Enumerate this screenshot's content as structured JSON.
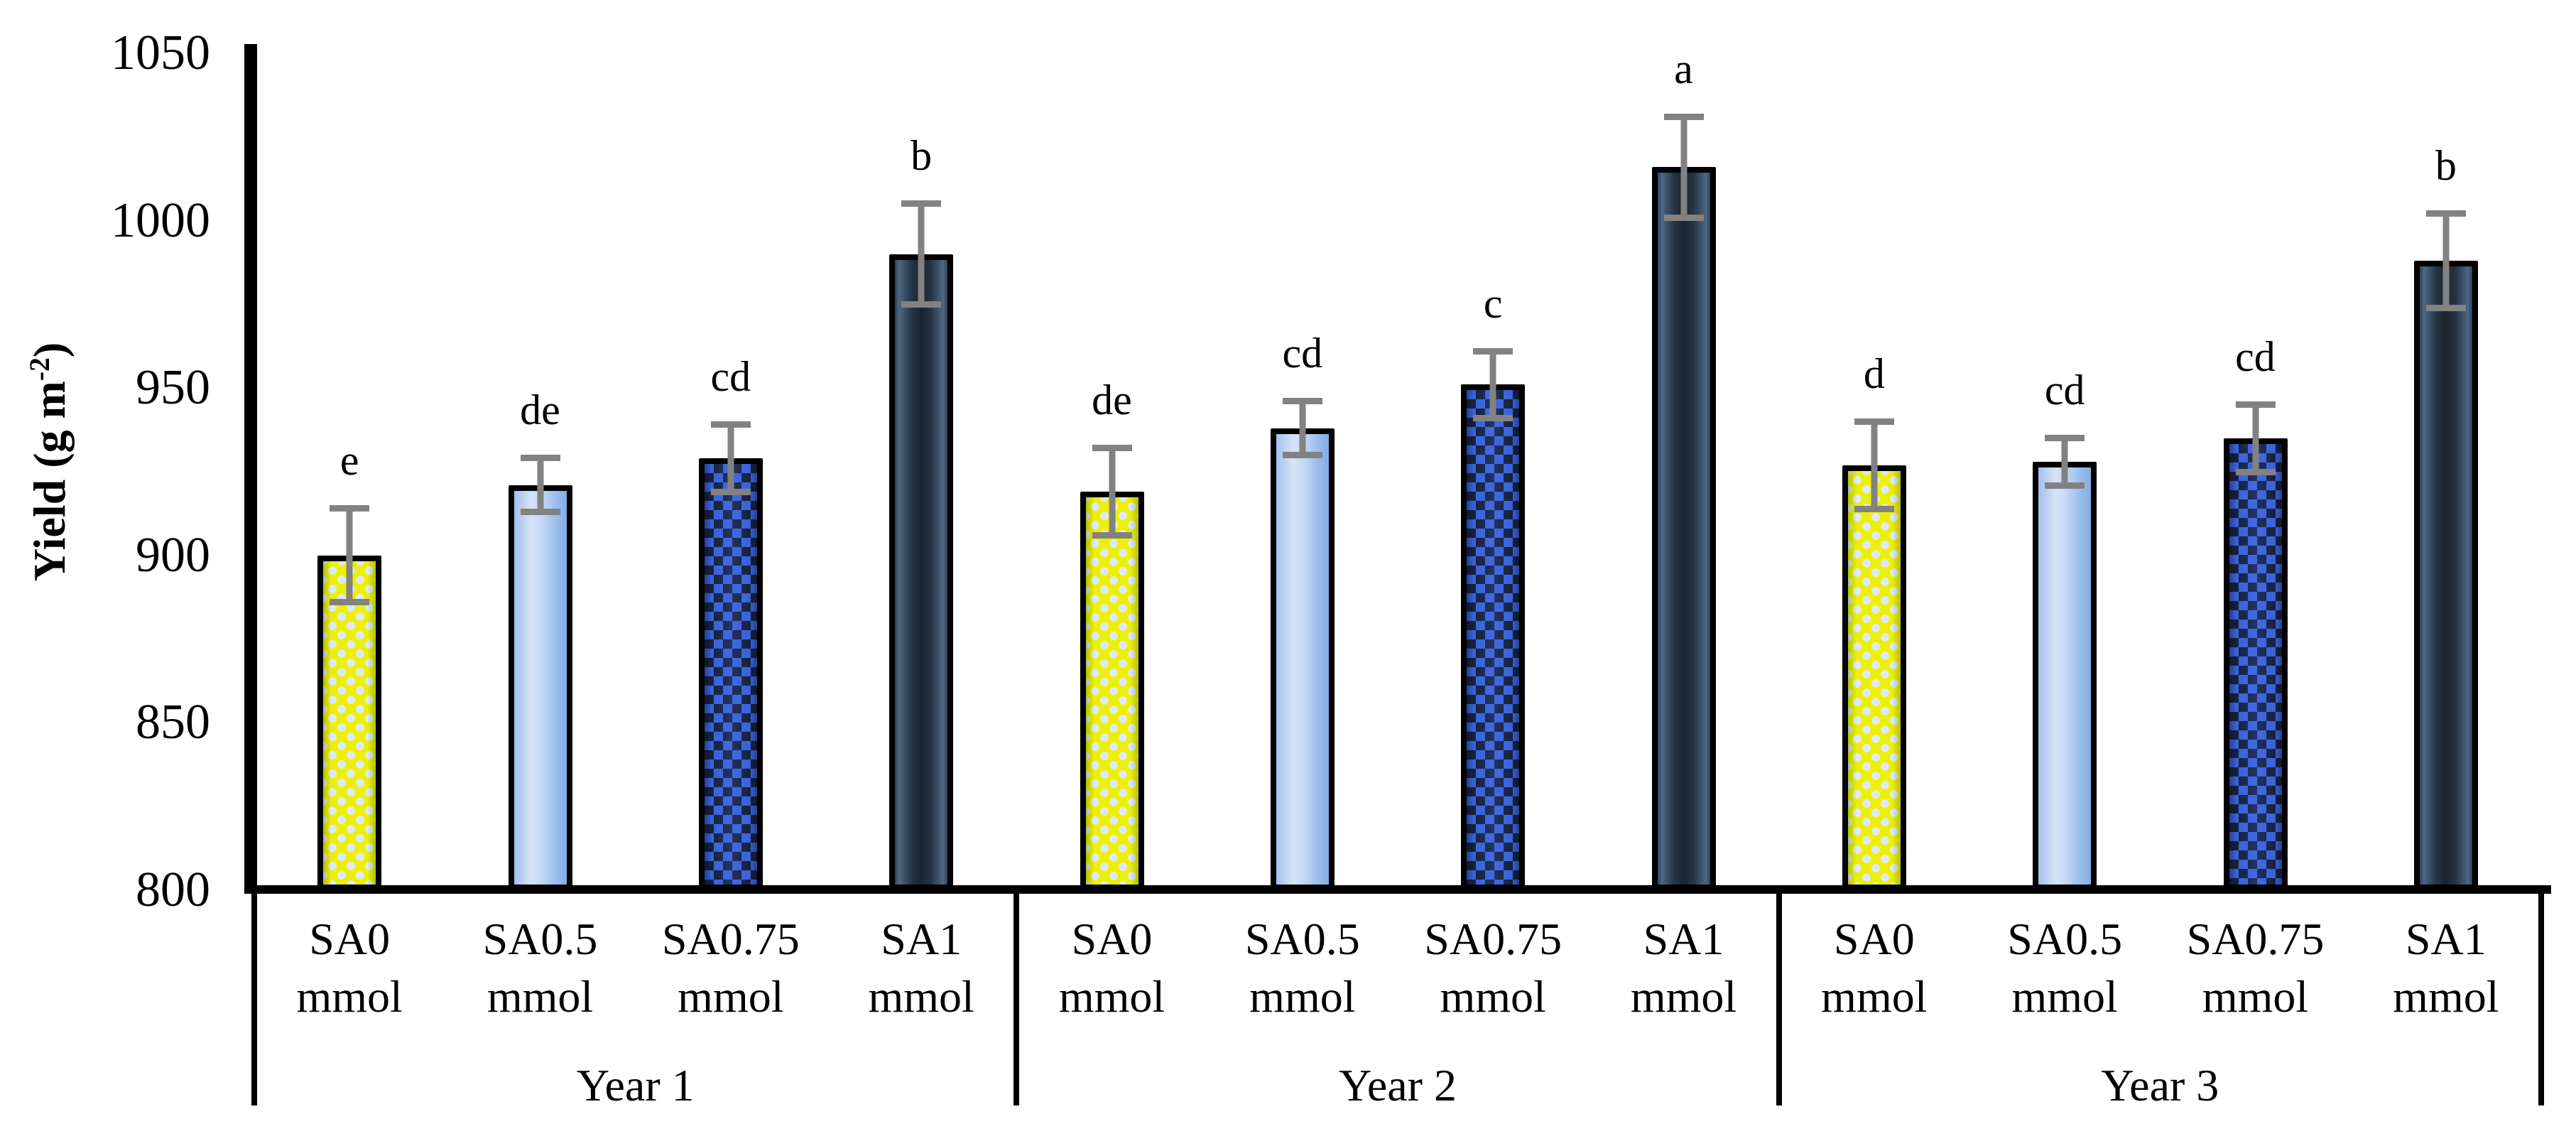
{
  "chart_data": {
    "type": "bar",
    "title": "",
    "ylabel_parts": {
      "text": "Yield (g m",
      "sup": "-2",
      "suffix": ")"
    },
    "ylim": [
      800,
      1050
    ],
    "yticks": [
      800,
      850,
      900,
      950,
      1000,
      1050
    ],
    "grid": false,
    "legend": false,
    "categories_per_group": [
      "SA0 mmol",
      "SA0.5 mmol",
      "SA0.75 mmol",
      "SA1 mmol"
    ],
    "groups": [
      {
        "label": "Year 1",
        "bars": [
          {
            "cat_line1": "SA0",
            "cat_line2": "mmol",
            "value": 900,
            "error": 15,
            "letter": "e",
            "style": "yellow-dots"
          },
          {
            "cat_line1": "SA0.5",
            "cat_line2": "mmol",
            "value": 921,
            "error": 9,
            "letter": "de",
            "style": "light-blue"
          },
          {
            "cat_line1": "SA0.75",
            "cat_line2": "mmol",
            "value": 929,
            "error": 11,
            "letter": "cd",
            "style": "blue-checker"
          },
          {
            "cat_line1": "SA1",
            "cat_line2": "mmol",
            "value": 990,
            "error": 16,
            "letter": "b",
            "style": "dark-navy"
          }
        ]
      },
      {
        "label": "Year 2",
        "bars": [
          {
            "cat_line1": "SA0",
            "cat_line2": "mmol",
            "value": 919,
            "error": 14,
            "letter": "de",
            "style": "yellow-dots"
          },
          {
            "cat_line1": "SA0.5",
            "cat_line2": "mmol",
            "value": 938,
            "error": 9,
            "letter": "cd",
            "style": "light-blue"
          },
          {
            "cat_line1": "SA0.75",
            "cat_line2": "mmol",
            "value": 951,
            "error": 11,
            "letter": "c",
            "style": "blue-checker"
          },
          {
            "cat_line1": "SA1",
            "cat_line2": "mmol",
            "value": 1016,
            "error": 16,
            "letter": "a",
            "style": "dark-navy"
          }
        ]
      },
      {
        "label": "Year 3",
        "bars": [
          {
            "cat_line1": "SA0",
            "cat_line2": "mmol",
            "value": 927,
            "error": 14,
            "letter": "d",
            "style": "yellow-dots"
          },
          {
            "cat_line1": "SA0.5",
            "cat_line2": "mmol",
            "value": 928,
            "error": 8,
            "letter": "cd",
            "style": "light-blue"
          },
          {
            "cat_line1": "SA0.75",
            "cat_line2": "mmol",
            "value": 935,
            "error": 11,
            "letter": "cd",
            "style": "blue-checker"
          },
          {
            "cat_line1": "SA1",
            "cat_line2": "mmol",
            "value": 988,
            "error": 15,
            "letter": "b",
            "style": "dark-navy"
          }
        ]
      }
    ],
    "colors": {
      "background": "#ffffff",
      "text": "#000000",
      "axis": "#000000",
      "bar_border": "#000000",
      "error_bar": "#828282",
      "sa0_fill": "#edf005",
      "sa0_dot": "#dceafb",
      "sa05_left": "#a3c0ea",
      "sa05_light": "#d6e3f8",
      "sa05_right": "#82ade4",
      "sa075_fill": "#3a63da",
      "sa075_check": "#16213b",
      "sa1_edge": "#4d6883",
      "sa1_mid": "#1a2430",
      "sa1_outer": "#2c4156"
    }
  }
}
